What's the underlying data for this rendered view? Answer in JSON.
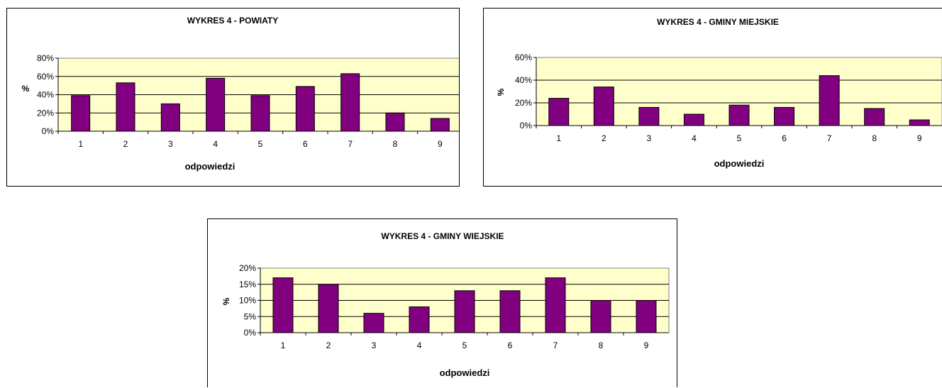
{
  "chart_data": [
    {
      "type": "bar",
      "title": "WYKRES 4 - POWIATY",
      "xlabel": "odpowiedzi",
      "ylabel": "%",
      "categories": [
        "1",
        "2",
        "3",
        "4",
        "5",
        "6",
        "7",
        "8",
        "9"
      ],
      "values": [
        39,
        53,
        30,
        58,
        39,
        49,
        63,
        20,
        14
      ],
      "ylim": [
        0,
        80
      ],
      "yticks": [
        "0%",
        "20%",
        "40%",
        "60%",
        "80%"
      ],
      "grid": true,
      "legend": "none",
      "colors": {
        "bar": "#800080",
        "plot_bg": "#ffffcc"
      }
    },
    {
      "type": "bar",
      "title": "WYKRES 4 - GMINY MIEJSKIE",
      "xlabel": "odpowiedzi",
      "ylabel": "%",
      "categories": [
        "1",
        "2",
        "3",
        "4",
        "5",
        "6",
        "7",
        "8",
        "9"
      ],
      "values": [
        24,
        34,
        16,
        10,
        18,
        16,
        44,
        15,
        5
      ],
      "ylim": [
        0,
        60
      ],
      "yticks": [
        "0%",
        "20%",
        "40%",
        "60%"
      ],
      "grid": true,
      "legend": "none",
      "colors": {
        "bar": "#800080",
        "plot_bg": "#ffffcc"
      }
    },
    {
      "type": "bar",
      "title": "WYKRES 4 - GMINY WIEJSKIE",
      "xlabel": "odpowiedzi",
      "ylabel": "%",
      "categories": [
        "1",
        "2",
        "3",
        "4",
        "5",
        "6",
        "7",
        "8",
        "9"
      ],
      "values": [
        17,
        15,
        6,
        8,
        13,
        13,
        17,
        10,
        10
      ],
      "ylim": [
        0,
        20
      ],
      "yticks": [
        "0%",
        "5%",
        "10%",
        "15%",
        "20%"
      ],
      "grid": true,
      "legend": "none",
      "colors": {
        "bar": "#800080",
        "plot_bg": "#ffffcc"
      }
    }
  ]
}
